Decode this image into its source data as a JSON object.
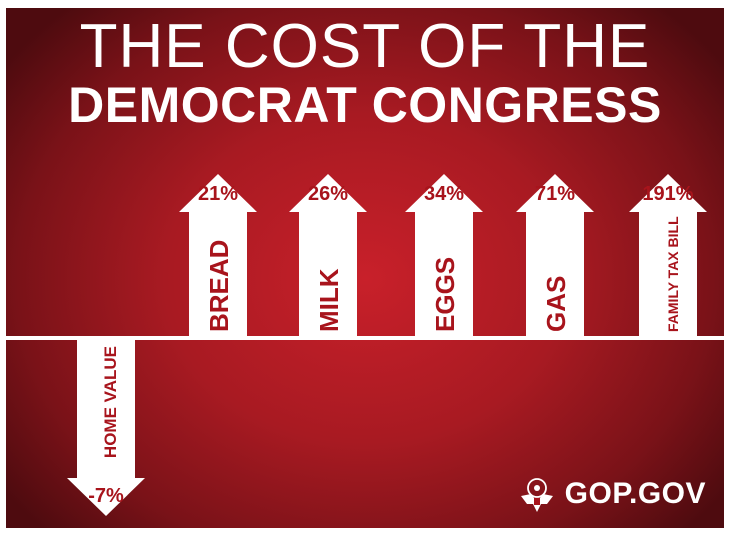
{
  "header": {
    "line1": "THE COST OF THE",
    "line2": "DEMOCRAT CONGRESS"
  },
  "brand": {
    "label": "GOP.GOV",
    "icon": "eagle-seal-icon"
  },
  "colors": {
    "background": "#b81c24",
    "arrow": "#ffffff",
    "label": "#a8141c"
  },
  "chart_data": {
    "type": "bar",
    "title": "THE COST OF THE DEMOCRAT CONGRESS",
    "categories": [
      "HOME VALUE",
      "BREAD",
      "MILK",
      "EGGS",
      "GAS",
      "FAMILY TAX BILL"
    ],
    "values": [
      -7,
      21,
      26,
      34,
      71,
      191
    ],
    "labels": [
      "-7%",
      "21%",
      "26%",
      "34%",
      "71%",
      "191%"
    ],
    "unit": "%",
    "xlabel": "",
    "ylabel": "",
    "grid": false,
    "legend": "none"
  }
}
